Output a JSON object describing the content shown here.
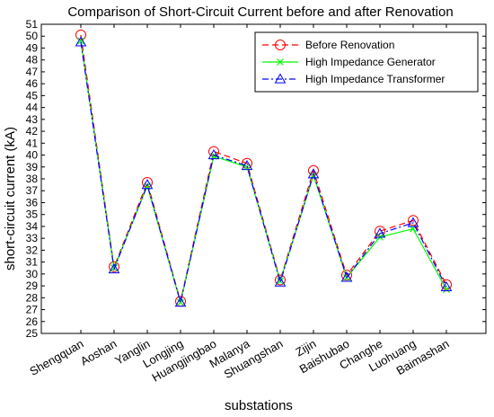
{
  "chart_data": {
    "type": "line",
    "title": "Comparison of Short-Circuit Current before and after Renovation",
    "xlabel": "substations",
    "ylabel": "short-circuit current (kA)",
    "ylim": [
      25,
      51
    ],
    "ytick_step": 1,
    "grid": false,
    "legend_position": "top-right",
    "categories": [
      "Shengquan",
      "Aoshan",
      "Yanglin",
      "Longjing",
      "Huangjingbao",
      "Malanya",
      "Shuangshan",
      "Zijin",
      "Baishubao",
      "Changhe",
      "Luohuang",
      "Baimashan"
    ],
    "series": [
      {
        "name": "Before Renovation",
        "color": "#ff0000",
        "line_style": "dashed",
        "marker": "circle",
        "values": [
          50.1,
          30.6,
          37.7,
          27.7,
          40.3,
          39.3,
          29.5,
          38.7,
          29.9,
          33.6,
          34.5,
          29.1
        ]
      },
      {
        "name": "High Impedance Generator",
        "color": "#00ff00",
        "line_style": "solid",
        "marker": "x",
        "values": [
          49.6,
          30.5,
          37.4,
          27.6,
          39.9,
          39.0,
          29.4,
          38.3,
          29.7,
          33.1,
          33.8,
          28.7
        ]
      },
      {
        "name": "High Impedance Transformer",
        "color": "#0000ff",
        "line_style": "dashdot",
        "marker": "triangle",
        "values": [
          49.5,
          30.4,
          37.5,
          27.6,
          40.0,
          39.1,
          29.3,
          38.4,
          29.7,
          33.4,
          34.3,
          28.9
        ]
      }
    ]
  }
}
